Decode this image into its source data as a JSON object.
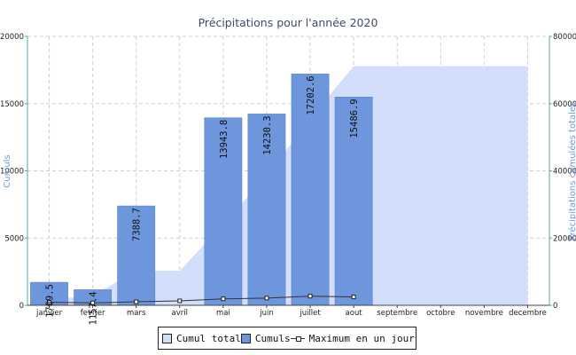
{
  "chart_data": {
    "type": "bar",
    "title": "Précipitations pour l'année 2020",
    "categories": [
      "janvier",
      "fevrier",
      "mars",
      "avril",
      "mai",
      "juin",
      "juillet",
      "aout",
      "septembre",
      "octobre",
      "novembre",
      "decembre"
    ],
    "series": [
      {
        "name": "Cumuls",
        "type": "bar",
        "axis": "left",
        "color": "#6d96dc",
        "values": [
          1709.5,
          1157.4,
          7388.7,
          null,
          13943.8,
          14230.3,
          17202.6,
          15486.9,
          null,
          null,
          null,
          null
        ],
        "labels": [
          "1709.5",
          "1157.4",
          "7388.7",
          "",
          "13943.8",
          "14230.3",
          "17202.6",
          "15486.9",
          "",
          "",
          "",
          ""
        ]
      },
      {
        "name": "Cumul total",
        "type": "area",
        "axis": "right",
        "color": "#d3defa",
        "values": [
          1709.5,
          2866.9,
          10255.6,
          10255.6,
          24199.4,
          38429.7,
          55632.3,
          71119.2,
          71119.2,
          71119.2,
          71119.2,
          71119.2
        ]
      },
      {
        "name": "Maximum en un jour",
        "type": "line",
        "axis": "left",
        "color": "#333333",
        "values": [
          230,
          180,
          260,
          330,
          480,
          540,
          680,
          620,
          null,
          null,
          null,
          null
        ]
      }
    ],
    "y_left": {
      "label": "Cumuls",
      "ylim": [
        0,
        20000
      ],
      "ticks": [
        "0",
        "5000",
        "10000",
        "15000",
        "20000"
      ]
    },
    "y_right": {
      "label": "Précipitations cumulées totales",
      "ylim": [
        0,
        80000
      ],
      "ticks": [
        "0",
        "20000",
        "40000",
        "60000",
        "80000"
      ]
    },
    "grid": true,
    "legend_position": "bottom"
  },
  "legend": {
    "items": [
      {
        "label": "Cumul total",
        "color": "#d3defa"
      },
      {
        "label": "Cumuls",
        "color": "#6d96dc"
      },
      {
        "label": "Maximum en un jour",
        "color": "#333333"
      }
    ]
  }
}
